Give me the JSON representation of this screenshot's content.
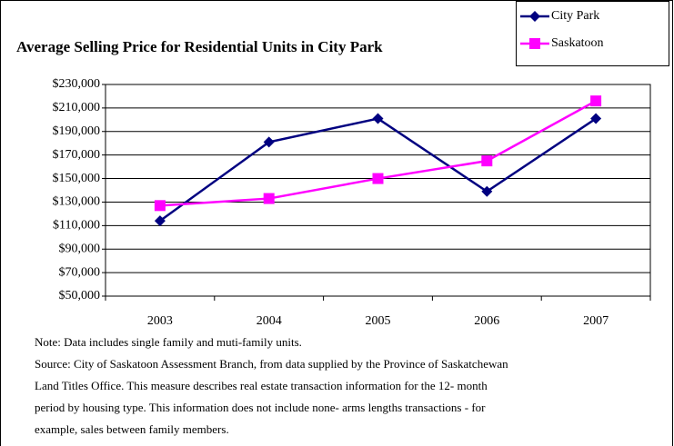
{
  "chart_data": {
    "type": "line",
    "title": "Average Selling Price for Residential Units in City Park",
    "categories": [
      "2003",
      "2004",
      "2005",
      "2006",
      "2007"
    ],
    "series": [
      {
        "name": "City Park",
        "color": "#000080",
        "marker": "diamond",
        "values": [
          114000,
          181000,
          201000,
          139000,
          201000
        ]
      },
      {
        "name": "Saskatoon",
        "color": "#ff00ff",
        "marker": "square",
        "values": [
          127000,
          133000,
          150000,
          165000,
          216000
        ]
      }
    ],
    "ylim": [
      50000,
      230000
    ],
    "yticks": [
      {
        "value": 50000,
        "label": "$50,000"
      },
      {
        "value": 70000,
        "label": "$70,000"
      },
      {
        "value": 90000,
        "label": "$90,000"
      },
      {
        "value": 110000,
        "label": "$110,000"
      },
      {
        "value": 130000,
        "label": "$130,000"
      },
      {
        "value": 150000,
        "label": "$150,000"
      },
      {
        "value": 170000,
        "label": "$170,000"
      },
      {
        "value": 190000,
        "label": "$190,000"
      },
      {
        "value": 210000,
        "label": "$210,000"
      },
      {
        "value": 230000,
        "label": "$230,000"
      }
    ],
    "grid": true,
    "legend": "top-right",
    "notes": [
      "Note:  Data includes single family and muti-family units.",
      "Source:  City of Saskatoon Assessment Branch, from data supplied by the Province of Saskatchewan",
      "Land Titles Office.  This measure describes real estate transaction information for the 12-   month",
      "period by housing type. This information does not include none-  arms lengths transactions - for",
      "example, sales between family members."
    ]
  }
}
